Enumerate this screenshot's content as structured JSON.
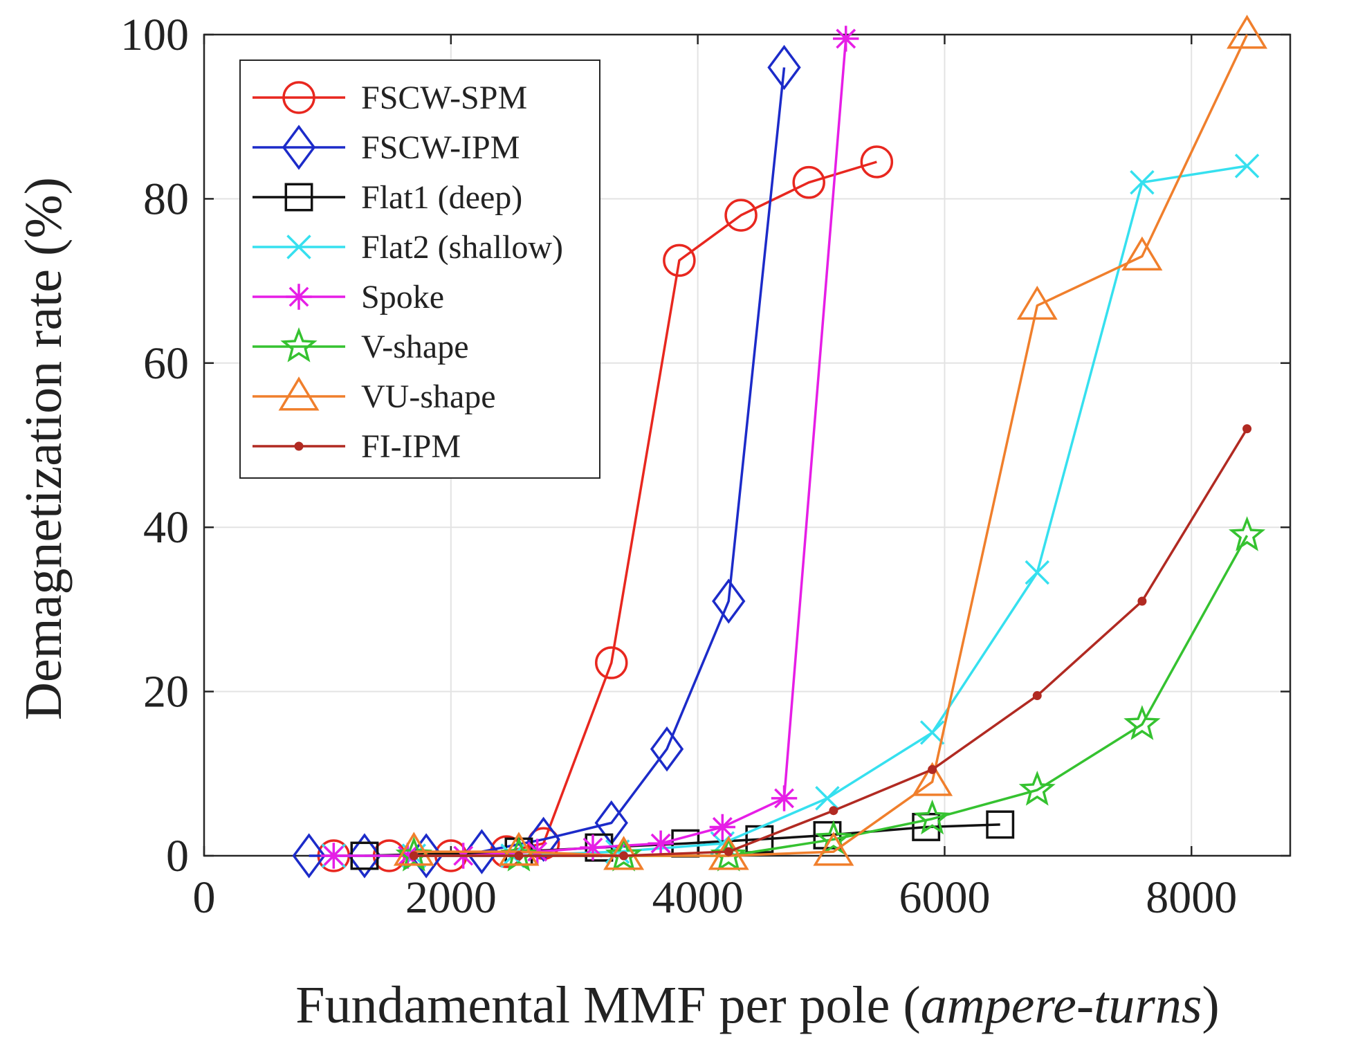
{
  "chart_data": {
    "type": "line",
    "xlabel": "Fundamental MMF per pole (",
    "xlabel_italic": "ampere-turns",
    "xlabel_end": ")",
    "ylabel": "Demagnetization rate (%)",
    "xlim": [
      0,
      8800
    ],
    "ylim": [
      0,
      100
    ],
    "xticks": [
      0,
      2000,
      4000,
      6000,
      8000
    ],
    "yticks": [
      0,
      20,
      40,
      60,
      80,
      100
    ],
    "grid": true,
    "legend_position": "top-left",
    "series": [
      {
        "name": "FSCW-SPM",
        "color": "#e8271f",
        "marker": "circle",
        "x": [
          1050,
          1500,
          2000,
          2450,
          2750,
          3300,
          3850,
          4350,
          4900,
          5450
        ],
        "y": [
          0,
          0,
          0,
          0.5,
          1.5,
          23.5,
          72.5,
          78,
          82,
          84.5
        ]
      },
      {
        "name": "FSCW-IPM",
        "color": "#1c2bc9",
        "marker": "diamond",
        "x": [
          850,
          1300,
          1800,
          2250,
          2750,
          3300,
          3750,
          4250,
          4700
        ],
        "y": [
          0,
          0,
          0,
          0.5,
          2,
          4,
          13,
          31,
          96
        ]
      },
      {
        "name": "Flat1 (deep)",
        "color": "#111111",
        "marker": "square",
        "x": [
          1300,
          2550,
          3200,
          3900,
          4500,
          5050,
          5850,
          6450
        ],
        "y": [
          0,
          0.5,
          1,
          1.5,
          2,
          2.5,
          3.5,
          3.8
        ]
      },
      {
        "name": "Flat2 (shallow)",
        "color": "#36e0ef",
        "marker": "x",
        "x": [
          1050,
          1700,
          2500,
          3350,
          4200,
          5050,
          5900,
          6750,
          7600,
          8450
        ],
        "y": [
          0,
          0,
          0,
          0.5,
          1.5,
          7,
          15,
          34.5,
          82,
          84
        ]
      },
      {
        "name": "Spoke",
        "color": "#e61ee6",
        "marker": "asterisk",
        "x": [
          1050,
          1650,
          2100,
          2700,
          3150,
          3700,
          4200,
          4700,
          5200
        ],
        "y": [
          0,
          0,
          0,
          0.5,
          1,
          1.5,
          3.5,
          7,
          99.5
        ]
      },
      {
        "name": "V-shape",
        "color": "#35c230",
        "marker": "star",
        "x": [
          1700,
          2550,
          3400,
          4250,
          5100,
          5900,
          6750,
          7600,
          8450
        ],
        "y": [
          0,
          0,
          0,
          0,
          2,
          4.5,
          8,
          16,
          39
        ]
      },
      {
        "name": "VU-shape",
        "color": "#f07f2c",
        "marker": "triangle",
        "x": [
          1700,
          2550,
          3400,
          4250,
          5100,
          5900,
          6750,
          7600,
          8450
        ],
        "y": [
          0.5,
          0.5,
          0,
          0,
          0.5,
          9,
          67,
          73,
          100
        ]
      },
      {
        "name": "FI-IPM",
        "color": "#b12a22",
        "marker": "dot",
        "x": [
          1700,
          2550,
          3400,
          4250,
          5100,
          5900,
          6750,
          7600,
          8450
        ],
        "y": [
          0,
          0,
          0,
          0.5,
          5.5,
          10.5,
          19.5,
          31,
          52
        ]
      }
    ]
  }
}
